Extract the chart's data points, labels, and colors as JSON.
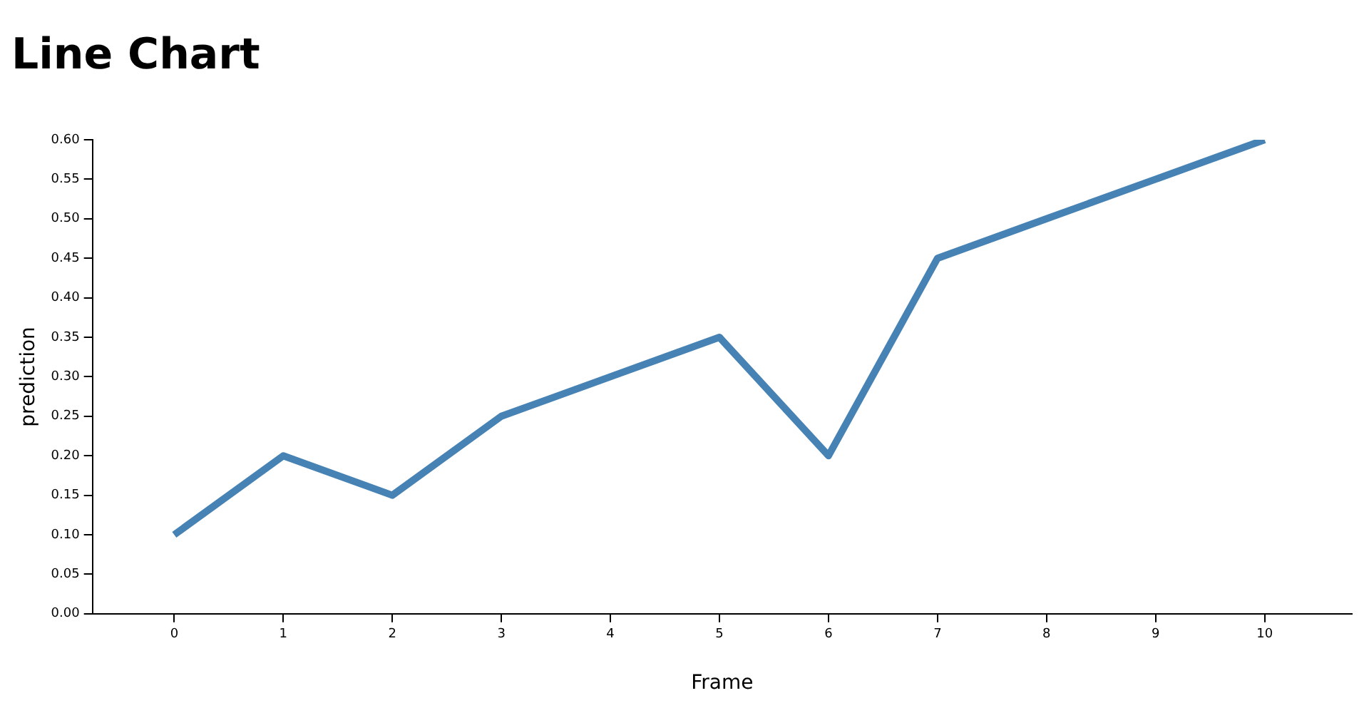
{
  "chart_data": {
    "type": "line",
    "title": "Line Chart",
    "xlabel": "Frame",
    "ylabel": "prediction",
    "x": [
      0,
      1,
      2,
      3,
      4,
      5,
      6,
      7,
      8,
      9,
      10
    ],
    "series": [
      {
        "color": "#4682b4",
        "values": [
          0.1,
          0.2,
          0.15,
          0.25,
          0.3,
          0.35,
          0.2,
          0.45,
          0.5,
          0.55,
          0.6
        ]
      }
    ],
    "xlim": [
      -0.75,
      10.8
    ],
    "xticks": [
      0,
      1,
      2,
      3,
      4,
      5,
      6,
      7,
      8,
      9,
      10
    ],
    "ylim": [
      0,
      0.6
    ],
    "yticks": [
      {
        "value": 0,
        "label": "0.00"
      },
      {
        "value": 0.05,
        "label": "0.05"
      },
      {
        "value": 0.1,
        "label": "0.10"
      },
      {
        "value": 0.15,
        "label": "0.15"
      },
      {
        "value": 0.2,
        "label": "0.20"
      },
      {
        "value": 0.25,
        "label": "0.25"
      },
      {
        "value": 0.3,
        "label": "0.30"
      },
      {
        "value": 0.35,
        "label": "0.35"
      },
      {
        "value": 0.4,
        "label": "0.40"
      },
      {
        "value": 0.45,
        "label": "0.45"
      },
      {
        "value": 0.5,
        "label": "0.50"
      },
      {
        "value": 0.55,
        "label": "0.55"
      },
      {
        "value": 0.6,
        "label": "0.60"
      }
    ],
    "grid": false,
    "legend": false,
    "marker": "none",
    "line_style": "solid"
  }
}
